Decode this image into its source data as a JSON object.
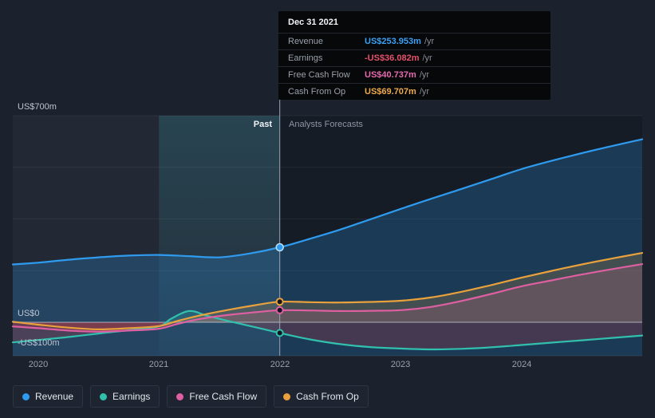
{
  "tooltip": {
    "date": "Dec 31 2021",
    "rows": [
      {
        "label": "Revenue",
        "value": "US$253.953m",
        "suffix": "/yr",
        "color": "#3da1f5"
      },
      {
        "label": "Earnings",
        "value": "-US$36.082m",
        "suffix": "/yr",
        "color": "#e8516b"
      },
      {
        "label": "Free Cash Flow",
        "value": "US$40.737m",
        "suffix": "/yr",
        "color": "#e56bae"
      },
      {
        "label": "Cash From Op",
        "value": "US$69.707m",
        "suffix": "/yr",
        "color": "#edaa4e"
      }
    ]
  },
  "legend": [
    {
      "label": "Revenue",
      "color": "#2f9bef"
    },
    {
      "label": "Earnings",
      "color": "#32c0ae"
    },
    {
      "label": "Free Cash Flow",
      "color": "#de5fa2"
    },
    {
      "label": "Cash From Op",
      "color": "#e8a13d"
    }
  ],
  "chart_data": {
    "type": "line",
    "unit": "US$ millions per year",
    "x_range": [
      2019.79,
      2025.0
    ],
    "divider_x": 2022,
    "highlight_band": [
      2021,
      2022
    ],
    "y_top": 700,
    "gridline_values": [
      700,
      525,
      350,
      175
    ],
    "annotations": {
      "past": "Past",
      "forecast": "Analysts Forecasts"
    },
    "x_axis": {
      "ticks": [
        {
          "text": "2020",
          "year": 2020
        },
        {
          "text": "2021",
          "year": 2021
        },
        {
          "text": "2022",
          "year": 2022
        },
        {
          "text": "2023",
          "year": 2023
        },
        {
          "text": "2024",
          "year": 2024
        }
      ]
    },
    "y_axis": {
      "ticks": [
        {
          "text": "US$700m",
          "value": 700
        },
        {
          "text": "US$0",
          "value": 0
        },
        {
          "text": "-US$100m",
          "value": -100
        }
      ]
    },
    "series": [
      {
        "name": "Revenue",
        "color": "#2f9bef",
        "fill": "bottom",
        "marker_value": 253.953,
        "x": [
          2019.79,
          2020,
          2020.25,
          2020.5,
          2020.75,
          2021,
          2021.25,
          2021.5,
          2021.75,
          2022,
          2022.25,
          2022.5,
          2022.75,
          2023,
          2023.25,
          2023.5,
          2023.75,
          2024,
          2024.25,
          2024.5,
          2024.75,
          2025
        ],
        "values": [
          196,
          202,
          212,
          220,
          226,
          228,
          224,
          220,
          233,
          253.953,
          283,
          314,
          349,
          384,
          418,
          451,
          485,
          519,
          547,
          573,
          597,
          620
        ]
      },
      {
        "name": "Earnings",
        "color": "#32c0ae",
        "fill": "zero",
        "marker_value": -36.082,
        "x": [
          2019.79,
          2020,
          2020.25,
          2020.5,
          2020.75,
          2021,
          2021.1,
          2021.25,
          2021.4,
          2021.6,
          2021.8,
          2022,
          2022.25,
          2022.5,
          2022.75,
          2023,
          2023.25,
          2023.5,
          2023.75,
          2024,
          2024.25,
          2024.5,
          2024.75,
          2025
        ],
        "values": [
          -68,
          -60,
          -50,
          -38,
          -27,
          -14,
          12,
          38,
          22,
          2,
          -17,
          -36.082,
          -58,
          -74,
          -84,
          -89,
          -92,
          -90,
          -85,
          -77,
          -69,
          -61,
          -53,
          -45
        ]
      },
      {
        "name": "Free Cash Flow",
        "color": "#de5fa2",
        "fill": "zero",
        "marker_value": 40.737,
        "x": [
          2019.79,
          2020,
          2020.25,
          2020.5,
          2020.75,
          2021,
          2021.15,
          2021.35,
          2021.6,
          2021.8,
          2022,
          2022.25,
          2022.5,
          2022.75,
          2023,
          2023.25,
          2023.5,
          2023.75,
          2024,
          2024.25,
          2024.5,
          2024.75,
          2025
        ],
        "values": [
          -14,
          -20,
          -28,
          -32,
          -28,
          -22,
          -6,
          12,
          26,
          34,
          40.737,
          40,
          38,
          39,
          41,
          52,
          72,
          96,
          122,
          142,
          162,
          180,
          197
        ]
      },
      {
        "name": "Cash From Op",
        "color": "#e8a13d",
        "fill": "zero",
        "marker_value": 69.707,
        "x": [
          2019.79,
          2020,
          2020.25,
          2020.5,
          2020.75,
          2021,
          2021.15,
          2021.35,
          2021.6,
          2021.8,
          2022,
          2022.25,
          2022.5,
          2022.75,
          2023,
          2023.25,
          2023.5,
          2023.75,
          2024,
          2024.25,
          2024.5,
          2024.75,
          2025
        ],
        "values": [
          2,
          -8,
          -18,
          -24,
          -20,
          -13,
          4,
          24,
          44,
          58,
          69.707,
          68,
          67,
          69,
          73,
          84,
          103,
          126,
          151,
          174,
          196,
          216,
          235
        ]
      }
    ]
  }
}
